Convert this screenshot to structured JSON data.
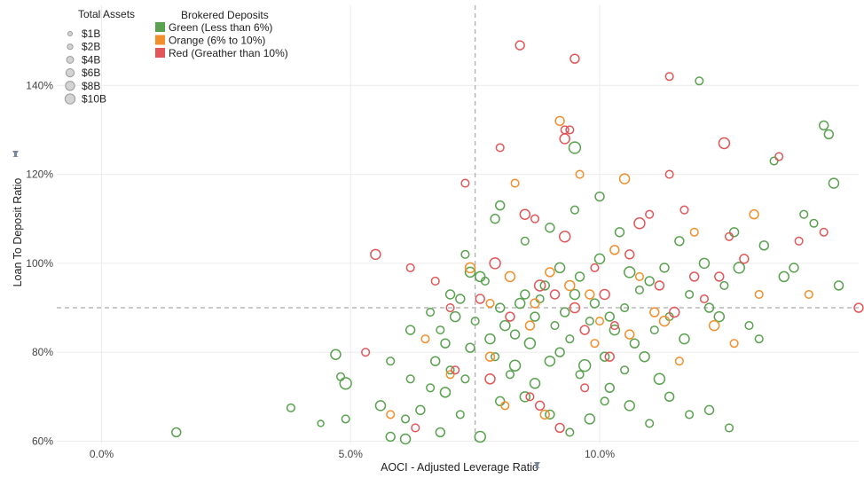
{
  "chart_data": {
    "type": "scatter",
    "xlabel": "AOCI - Adjusted Leverage Ratio",
    "ylabel": "Loan To Deposit Ratio",
    "xlim": [
      -0.009,
      0.152
    ],
    "ylim": [
      0.595,
      1.58
    ],
    "x_ticks": [
      {
        "value": 0.0,
        "label": "0.0%"
      },
      {
        "value": 0.05,
        "label": "5.0%"
      },
      {
        "value": 0.1,
        "label": "10.0%"
      }
    ],
    "y_ticks": [
      {
        "value": 0.6,
        "label": "60%"
      },
      {
        "value": 0.8,
        "label": "80%"
      },
      {
        "value": 1.0,
        "label": "100%"
      },
      {
        "value": 1.2,
        "label": "120%"
      },
      {
        "value": 1.4,
        "label": "140%"
      }
    ],
    "reference_lines": {
      "x": 0.075,
      "y": 0.9,
      "style": "dashed"
    },
    "grid": true,
    "size_legend": {
      "title": "Total Assets",
      "entries": [
        {
          "label": "$1B",
          "value": 1
        },
        {
          "label": "$2B",
          "value": 2
        },
        {
          "label": "$4B",
          "value": 4
        },
        {
          "label": "$6B",
          "value": 6
        },
        {
          "label": "$8B",
          "value": 8
        },
        {
          "label": "$10B",
          "value": 10
        }
      ]
    },
    "color_legend": {
      "title": "Brokered Deposits",
      "entries": [
        {
          "label": "Green (Less than 6%)",
          "color": "#59a14f"
        },
        {
          "label": "Orange (6% to 10%)",
          "color": "#f28e2b"
        },
        {
          "label": "Red (Greather than 10%)",
          "color": "#e15759"
        }
      ]
    },
    "series": [
      {
        "name": "Green (Less than 6%)",
        "color": "#59a14f",
        "points": [
          [
            0.015,
            0.62,
            3
          ],
          [
            0.047,
            0.795,
            4
          ],
          [
            0.049,
            0.73,
            6
          ],
          [
            0.048,
            0.745,
            2
          ],
          [
            0.049,
            0.65,
            2
          ],
          [
            0.044,
            0.64,
            1
          ],
          [
            0.038,
            0.675,
            2
          ],
          [
            0.056,
            0.68,
            4
          ],
          [
            0.058,
            0.61,
            3
          ],
          [
            0.061,
            0.605,
            4
          ],
          [
            0.061,
            0.65,
            2
          ],
          [
            0.064,
            0.67,
            3
          ],
          [
            0.066,
            0.72,
            2
          ],
          [
            0.067,
            0.78,
            3
          ],
          [
            0.068,
            0.85,
            2
          ],
          [
            0.069,
            0.82,
            3
          ],
          [
            0.07,
            0.76,
            2
          ],
          [
            0.071,
            0.88,
            4
          ],
          [
            0.072,
            0.92,
            3
          ],
          [
            0.073,
            0.74,
            2
          ],
          [
            0.074,
            0.81,
            3
          ],
          [
            0.075,
            0.87,
            2
          ],
          [
            0.076,
            0.97,
            4
          ],
          [
            0.077,
            0.96,
            2
          ],
          [
            0.078,
            0.83,
            4
          ],
          [
            0.079,
            0.79,
            2
          ],
          [
            0.08,
            0.9,
            3
          ],
          [
            0.081,
            0.86,
            4
          ],
          [
            0.082,
            0.75,
            2
          ],
          [
            0.083,
            0.84,
            3
          ],
          [
            0.084,
            0.91,
            4
          ],
          [
            0.085,
            0.93,
            3
          ],
          [
            0.086,
            0.82,
            5
          ],
          [
            0.087,
            0.88,
            3
          ],
          [
            0.088,
            0.92,
            2
          ],
          [
            0.089,
            0.95,
            3
          ],
          [
            0.09,
            0.78,
            4
          ],
          [
            0.091,
            0.86,
            2
          ],
          [
            0.092,
            0.99,
            4
          ],
          [
            0.093,
            0.89,
            3
          ],
          [
            0.094,
            0.83,
            2
          ],
          [
            0.095,
            1.26,
            6
          ],
          [
            0.095,
            0.93,
            4
          ],
          [
            0.096,
            0.97,
            3
          ],
          [
            0.097,
            0.77,
            6
          ],
          [
            0.098,
            0.87,
            2
          ],
          [
            0.099,
            0.91,
            3
          ],
          [
            0.1,
            1.01,
            4
          ],
          [
            0.101,
            0.69,
            2
          ],
          [
            0.102,
            0.88,
            3
          ],
          [
            0.103,
            0.85,
            4
          ],
          [
            0.104,
            1.07,
            3
          ],
          [
            0.105,
            0.9,
            2
          ],
          [
            0.106,
            0.98,
            5
          ],
          [
            0.107,
            0.82,
            3
          ],
          [
            0.108,
            0.94,
            2
          ],
          [
            0.109,
            0.79,
            4
          ],
          [
            0.11,
            0.96,
            3
          ],
          [
            0.111,
            0.85,
            2
          ],
          [
            0.112,
            0.74,
            5
          ],
          [
            0.113,
            0.99,
            3
          ],
          [
            0.114,
            0.88,
            2
          ],
          [
            0.116,
            1.05,
            3
          ],
          [
            0.117,
            0.83,
            4
          ],
          [
            0.118,
            0.93,
            2
          ],
          [
            0.12,
            1.41,
            2
          ],
          [
            0.121,
            1.0,
            4
          ],
          [
            0.122,
            0.9,
            3
          ],
          [
            0.124,
            0.88,
            4
          ],
          [
            0.125,
            0.95,
            2
          ],
          [
            0.127,
            1.07,
            3
          ],
          [
            0.128,
            0.99,
            5
          ],
          [
            0.13,
            0.86,
            2
          ],
          [
            0.132,
            0.83,
            2
          ],
          [
            0.133,
            1.04,
            3
          ],
          [
            0.135,
            1.23,
            2
          ],
          [
            0.137,
            0.97,
            4
          ],
          [
            0.139,
            0.99,
            3
          ],
          [
            0.141,
            1.11,
            2
          ],
          [
            0.143,
            1.09,
            2
          ],
          [
            0.145,
            1.31,
            3
          ],
          [
            0.146,
            1.29,
            3
          ],
          [
            0.147,
            1.18,
            4
          ],
          [
            0.148,
            0.95,
            3
          ],
          [
            0.062,
            0.74,
            2
          ],
          [
            0.068,
            0.62,
            3
          ],
          [
            0.072,
            0.66,
            2
          ],
          [
            0.076,
            0.61,
            5
          ],
          [
            0.08,
            0.69,
            3
          ],
          [
            0.085,
            0.7,
            4
          ],
          [
            0.09,
            0.66,
            3
          ],
          [
            0.094,
            0.62,
            2
          ],
          [
            0.098,
            0.65,
            4
          ],
          [
            0.102,
            0.72,
            3
          ],
          [
            0.106,
            0.68,
            4
          ],
          [
            0.11,
            0.64,
            2
          ],
          [
            0.114,
            0.7,
            3
          ],
          [
            0.118,
            0.66,
            2
          ],
          [
            0.122,
            0.67,
            3
          ],
          [
            0.126,
            0.63,
            2
          ],
          [
            0.085,
            1.05,
            2
          ],
          [
            0.09,
            1.08,
            3
          ],
          [
            0.095,
            1.12,
            2
          ],
          [
            0.1,
            1.15,
            3
          ],
          [
            0.08,
            1.13,
            3
          ],
          [
            0.074,
            0.98,
            4
          ],
          [
            0.058,
            0.78,
            2
          ],
          [
            0.062,
            0.85,
            3
          ],
          [
            0.066,
            0.89,
            2
          ],
          [
            0.07,
            0.93,
            3
          ],
          [
            0.073,
            1.02,
            2
          ],
          [
            0.079,
            1.1,
            3
          ],
          [
            0.069,
            0.71,
            4
          ],
          [
            0.083,
            0.77,
            5
          ],
          [
            0.087,
            0.73,
            4
          ],
          [
            0.092,
            0.8,
            3
          ],
          [
            0.096,
            0.75,
            2
          ],
          [
            0.101,
            0.79,
            3
          ],
          [
            0.105,
            0.76,
            2
          ]
        ]
      },
      {
        "name": "Orange (6% to 10%)",
        "color": "#f28e2b",
        "points": [
          [
            0.074,
            0.99,
            4
          ],
          [
            0.082,
            0.97,
            4
          ],
          [
            0.083,
            1.18,
            2
          ],
          [
            0.087,
            0.91,
            3
          ],
          [
            0.09,
            0.98,
            3
          ],
          [
            0.092,
            1.32,
            3
          ],
          [
            0.094,
            0.95,
            4
          ],
          [
            0.096,
            1.2,
            2
          ],
          [
            0.098,
            0.93,
            3
          ],
          [
            0.1,
            0.87,
            2
          ],
          [
            0.103,
            1.03,
            3
          ],
          [
            0.105,
            1.19,
            4
          ],
          [
            0.108,
            0.97,
            2
          ],
          [
            0.111,
            0.89,
            3
          ],
          [
            0.113,
            0.87,
            4
          ],
          [
            0.116,
            0.78,
            2
          ],
          [
            0.119,
            1.07,
            2
          ],
          [
            0.123,
            0.86,
            4
          ],
          [
            0.127,
            0.82,
            2
          ],
          [
            0.131,
            1.11,
            3
          ],
          [
            0.132,
            0.93,
            2
          ],
          [
            0.142,
            0.93,
            2
          ],
          [
            0.078,
            0.91,
            2
          ],
          [
            0.086,
            0.86,
            3
          ],
          [
            0.065,
            0.83,
            2
          ],
          [
            0.07,
            0.75,
            2
          ],
          [
            0.081,
            0.68,
            2
          ],
          [
            0.089,
            0.66,
            3
          ],
          [
            0.099,
            0.82,
            2
          ],
          [
            0.106,
            0.84,
            3
          ],
          [
            0.058,
            0.66,
            2
          ],
          [
            0.078,
            0.79,
            3
          ]
        ]
      },
      {
        "name": "Red (Greather than 10%)",
        "color": "#e15759",
        "points": [
          [
            0.084,
            1.49,
            3
          ],
          [
            0.095,
            1.46,
            3
          ],
          [
            0.093,
            1.28,
            4
          ],
          [
            0.093,
            1.3,
            2
          ],
          [
            0.094,
            1.3,
            2
          ],
          [
            0.125,
            1.27,
            5
          ],
          [
            0.114,
            1.42,
            2
          ],
          [
            0.055,
            1.02,
            4
          ],
          [
            0.062,
            0.99,
            2
          ],
          [
            0.067,
            0.96,
            2
          ],
          [
            0.076,
            0.92,
            3
          ],
          [
            0.079,
            1.0,
            5
          ],
          [
            0.082,
            0.88,
            3
          ],
          [
            0.085,
            1.11,
            4
          ],
          [
            0.088,
            0.95,
            5
          ],
          [
            0.091,
            0.93,
            3
          ],
          [
            0.093,
            1.06,
            5
          ],
          [
            0.095,
            0.9,
            4
          ],
          [
            0.097,
            0.85,
            3
          ],
          [
            0.099,
            0.99,
            2
          ],
          [
            0.101,
            0.93,
            4
          ],
          [
            0.103,
            0.86,
            2
          ],
          [
            0.106,
            1.02,
            3
          ],
          [
            0.108,
            1.09,
            5
          ],
          [
            0.11,
            1.11,
            2
          ],
          [
            0.112,
            0.95,
            3
          ],
          [
            0.115,
            0.89,
            4
          ],
          [
            0.117,
            1.12,
            2
          ],
          [
            0.119,
            0.97,
            3
          ],
          [
            0.121,
            0.92,
            2
          ],
          [
            0.124,
            0.97,
            3
          ],
          [
            0.126,
            1.06,
            2
          ],
          [
            0.129,
            1.01,
            3
          ],
          [
            0.136,
            1.24,
            2
          ],
          [
            0.14,
            1.05,
            2
          ],
          [
            0.145,
            1.07,
            2
          ],
          [
            0.152,
            0.9,
            3
          ],
          [
            0.071,
            0.76,
            2
          ],
          [
            0.078,
            0.74,
            4
          ],
          [
            0.086,
            0.7,
            2
          ],
          [
            0.092,
            0.63,
            3
          ],
          [
            0.088,
            0.68,
            3
          ],
          [
            0.063,
            0.63,
            2
          ],
          [
            0.053,
            0.8,
            2
          ],
          [
            0.08,
            1.26,
            2
          ],
          [
            0.087,
            1.1,
            2
          ],
          [
            0.114,
            1.2,
            2
          ],
          [
            0.097,
            0.72,
            2
          ],
          [
            0.102,
            0.79,
            3
          ],
          [
            0.073,
            1.18,
            2
          ],
          [
            0.07,
            0.9,
            2
          ]
        ]
      }
    ]
  }
}
